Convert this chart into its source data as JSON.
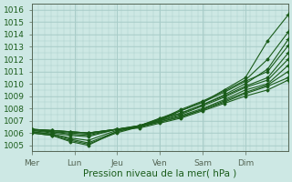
{
  "xlabel": "Pression niveau de la mer( hPa )",
  "ylim": [
    1004.5,
    1016.5
  ],
  "yticks": [
    1005,
    1006,
    1007,
    1008,
    1009,
    1010,
    1011,
    1012,
    1013,
    1014,
    1015,
    1016
  ],
  "x_day_labels": [
    "Mer",
    "Lun",
    "Jeu",
    "Ven",
    "Sam",
    "Dim"
  ],
  "x_day_positions": [
    0,
    0.167,
    0.333,
    0.5,
    0.667,
    0.833
  ],
  "xlim": [
    0,
    1.0
  ],
  "background_color": "#cde8e4",
  "grid_color": "#a8ccc8",
  "line_color": "#1a5c1a",
  "tick_label_color": "#1a5c1a",
  "axis_color": "#556655",
  "font_size": 6.5,
  "xlabel_fontsize": 7.5,
  "series": [
    {
      "points": [
        [
          0,
          1006.0
        ],
        [
          0.08,
          1005.8
        ],
        [
          0.15,
          1005.4
        ],
        [
          0.22,
          1005.1
        ],
        [
          0.33,
          1006.0
        ],
        [
          0.42,
          1006.5
        ],
        [
          0.5,
          1007.0
        ],
        [
          0.58,
          1007.8
        ],
        [
          0.667,
          1008.5
        ],
        [
          0.75,
          1009.5
        ],
        [
          0.833,
          1010.5
        ],
        [
          0.92,
          1013.5
        ],
        [
          1.0,
          1015.6
        ]
      ]
    },
    {
      "points": [
        [
          0,
          1006.1
        ],
        [
          0.08,
          1005.9
        ],
        [
          0.15,
          1005.5
        ],
        [
          0.22,
          1005.2
        ],
        [
          0.33,
          1006.1
        ],
        [
          0.42,
          1006.6
        ],
        [
          0.5,
          1007.1
        ],
        [
          0.58,
          1007.9
        ],
        [
          0.667,
          1008.6
        ],
        [
          0.75,
          1009.4
        ],
        [
          0.833,
          1010.3
        ],
        [
          0.92,
          1012.0
        ],
        [
          1.0,
          1014.2
        ]
      ]
    },
    {
      "points": [
        [
          0,
          1006.0
        ],
        [
          0.08,
          1005.8
        ],
        [
          0.15,
          1005.3
        ],
        [
          0.22,
          1005.0
        ],
        [
          0.33,
          1006.1
        ],
        [
          0.42,
          1006.5
        ],
        [
          0.5,
          1007.2
        ],
        [
          0.58,
          1007.6
        ],
        [
          0.667,
          1008.3
        ],
        [
          0.75,
          1009.1
        ],
        [
          0.833,
          1010.0
        ],
        [
          0.92,
          1011.2
        ],
        [
          1.0,
          1013.6
        ]
      ]
    },
    {
      "points": [
        [
          0,
          1006.1
        ],
        [
          0.08,
          1005.9
        ],
        [
          0.15,
          1005.6
        ],
        [
          0.22,
          1005.4
        ],
        [
          0.33,
          1006.2
        ],
        [
          0.42,
          1006.6
        ],
        [
          0.5,
          1007.2
        ],
        [
          0.58,
          1007.8
        ],
        [
          0.667,
          1008.5
        ],
        [
          0.75,
          1009.3
        ],
        [
          0.833,
          1010.2
        ],
        [
          0.92,
          1011.0
        ],
        [
          1.0,
          1013.1
        ]
      ]
    },
    {
      "points": [
        [
          0,
          1006.2
        ],
        [
          0.08,
          1006.0
        ],
        [
          0.15,
          1005.8
        ],
        [
          0.22,
          1005.7
        ],
        [
          0.33,
          1006.3
        ],
        [
          0.42,
          1006.6
        ],
        [
          0.5,
          1007.1
        ],
        [
          0.58,
          1007.6
        ],
        [
          0.667,
          1008.3
        ],
        [
          0.75,
          1009.0
        ],
        [
          0.833,
          1009.8
        ],
        [
          0.92,
          1010.5
        ],
        [
          1.0,
          1012.5
        ]
      ]
    },
    {
      "points": [
        [
          0,
          1006.2
        ],
        [
          0.08,
          1006.1
        ],
        [
          0.15,
          1005.9
        ],
        [
          0.22,
          1005.8
        ],
        [
          0.33,
          1006.3
        ],
        [
          0.42,
          1006.6
        ],
        [
          0.5,
          1007.0
        ],
        [
          0.58,
          1007.5
        ],
        [
          0.667,
          1008.2
        ],
        [
          0.75,
          1008.9
        ],
        [
          0.833,
          1009.7
        ],
        [
          0.92,
          1010.3
        ],
        [
          1.0,
          1012.0
        ]
      ]
    },
    {
      "points": [
        [
          0,
          1006.3
        ],
        [
          0.08,
          1006.1
        ],
        [
          0.15,
          1006.0
        ],
        [
          0.22,
          1005.9
        ],
        [
          0.33,
          1006.3
        ],
        [
          0.42,
          1006.5
        ],
        [
          0.5,
          1007.0
        ],
        [
          0.58,
          1007.4
        ],
        [
          0.667,
          1008.0
        ],
        [
          0.75,
          1008.7
        ],
        [
          0.833,
          1009.5
        ],
        [
          0.92,
          1010.0
        ],
        [
          1.0,
          1011.5
        ]
      ]
    },
    {
      "points": [
        [
          0,
          1006.3
        ],
        [
          0.08,
          1006.2
        ],
        [
          0.15,
          1006.1
        ],
        [
          0.22,
          1006.0
        ],
        [
          0.33,
          1006.3
        ],
        [
          0.42,
          1006.5
        ],
        [
          0.5,
          1006.9
        ],
        [
          0.58,
          1007.3
        ],
        [
          0.667,
          1007.9
        ],
        [
          0.75,
          1008.6
        ],
        [
          0.833,
          1009.3
        ],
        [
          0.92,
          1009.9
        ],
        [
          1.0,
          1011.0
        ]
      ]
    },
    {
      "points": [
        [
          0,
          1006.3
        ],
        [
          0.08,
          1006.2
        ],
        [
          0.15,
          1006.1
        ],
        [
          0.22,
          1006.0
        ],
        [
          0.33,
          1006.3
        ],
        [
          0.42,
          1006.5
        ],
        [
          0.5,
          1006.9
        ],
        [
          0.58,
          1007.3
        ],
        [
          0.667,
          1007.9
        ],
        [
          0.75,
          1008.5
        ],
        [
          0.833,
          1009.2
        ],
        [
          0.92,
          1009.8
        ],
        [
          1.0,
          1010.5
        ]
      ]
    },
    {
      "points": [
        [
          0,
          1006.3
        ],
        [
          0.08,
          1006.2
        ],
        [
          0.15,
          1006.1
        ],
        [
          0.22,
          1006.0
        ],
        [
          0.33,
          1006.3
        ],
        [
          0.42,
          1006.4
        ],
        [
          0.5,
          1006.8
        ],
        [
          0.58,
          1007.2
        ],
        [
          0.667,
          1007.8
        ],
        [
          0.75,
          1008.4
        ],
        [
          0.833,
          1009.0
        ],
        [
          0.92,
          1009.5
        ],
        [
          1.0,
          1010.3
        ]
      ]
    }
  ]
}
